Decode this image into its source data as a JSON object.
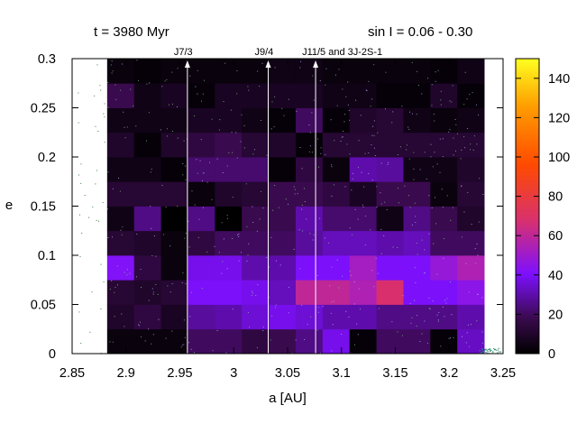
{
  "chart_data": {
    "type": "heatmap",
    "title_left": "t = 3980 Myr",
    "title_right": "sin I = 0.06 - 0.30",
    "xlabel": "a [AU]",
    "ylabel": "e",
    "xlim": [
      2.85,
      3.25
    ],
    "ylim": [
      0,
      0.3
    ],
    "xticks": [
      "2.85",
      "2.9",
      "2.95",
      "3",
      "3.05",
      "3.1",
      "3.15",
      "3.2",
      "3.25"
    ],
    "xtick_values": [
      2.85,
      2.9,
      2.95,
      3.0,
      3.05,
      3.1,
      3.15,
      3.2,
      3.25
    ],
    "yticks": [
      "0",
      "0.05",
      "0.1",
      "0.15",
      "0.2",
      "0.25",
      "0.3"
    ],
    "ytick_values": [
      0,
      0.05,
      0.1,
      0.15,
      0.2,
      0.25,
      0.3
    ],
    "colorbar": {
      "range": [
        0,
        150
      ],
      "ticks": [
        "0",
        "20",
        "40",
        "60",
        "80",
        "100",
        "120",
        "140"
      ],
      "tick_values": [
        0,
        20,
        40,
        60,
        80,
        100,
        120,
        140
      ]
    },
    "resonances": [
      {
        "label": "J7/3",
        "a": 2.957
      },
      {
        "label": "J9/4",
        "a": 3.032
      },
      {
        "label": "J11/5 and 3J-2S-1",
        "a": 3.076
      }
    ],
    "grid": {
      "a_start": 2.8825,
      "a_step": 0.025,
      "e_start": 0,
      "e_step": 0.025,
      "columns": 14,
      "rows": 12,
      "values": [
        [
          3,
          3,
          3,
          20,
          20,
          15,
          18,
          25,
          38,
          2,
          20,
          20,
          2,
          33
        ],
        [
          10,
          15,
          8,
          28,
          30,
          35,
          38,
          35,
          30,
          30,
          25,
          25,
          25,
          30
        ],
        [
          12,
          10,
          12,
          40,
          40,
          38,
          32,
          60,
          60,
          55,
          68,
          40,
          40,
          45
        ],
        [
          42,
          15,
          3,
          38,
          38,
          30,
          30,
          40,
          40,
          52,
          40,
          40,
          48,
          55
        ],
        [
          12,
          10,
          3,
          15,
          20,
          20,
          20,
          28,
          32,
          32,
          30,
          32,
          20,
          20
        ],
        [
          5,
          25,
          0,
          25,
          0,
          18,
          18,
          30,
          22,
          22,
          5,
          25,
          18,
          10
        ],
        [
          12,
          12,
          12,
          3,
          10,
          12,
          18,
          18,
          15,
          8,
          18,
          18,
          3,
          12
        ],
        [
          5,
          5,
          2,
          22,
          22,
          22,
          2,
          15,
          3,
          30,
          28,
          5,
          5,
          10
        ],
        [
          10,
          2,
          10,
          15,
          18,
          12,
          10,
          2,
          12,
          12,
          12,
          12,
          12,
          12
        ],
        [
          5,
          5,
          5,
          8,
          8,
          5,
          2,
          20,
          2,
          10,
          12,
          5,
          3,
          5
        ],
        [
          18,
          5,
          8,
          2,
          8,
          8,
          8,
          8,
          5,
          5,
          2,
          2,
          10,
          2
        ],
        [
          3,
          2,
          3,
          3,
          3,
          3,
          5,
          5,
          3,
          3,
          3,
          3,
          2,
          5
        ]
      ]
    }
  }
}
